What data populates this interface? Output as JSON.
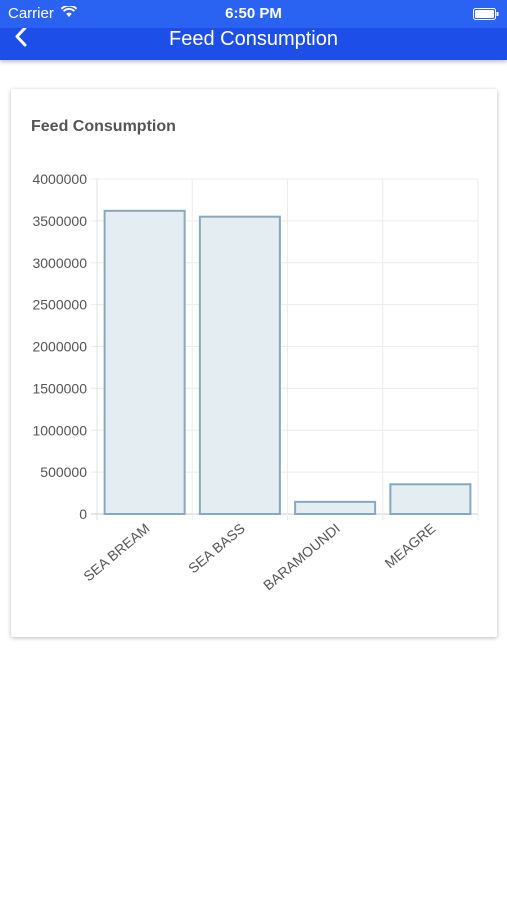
{
  "status_bar": {
    "carrier": "Carrier",
    "time": "6:50 PM"
  },
  "nav": {
    "title": "Feed Consumption",
    "back_icon": "chevron-left-icon"
  },
  "card": {
    "title": "Feed Consumption"
  },
  "colors": {
    "nav_bg": "#1d4fe8",
    "bar_fill": "#e4edf1",
    "bar_stroke": "#86a9c0"
  },
  "chart_data": {
    "type": "bar",
    "categories": [
      "SEA BREAM",
      "SEA BASS",
      "BARAMOUNDI",
      "MEAGRE"
    ],
    "values": [
      3620000,
      3550000,
      145000,
      355000
    ],
    "y_ticks": [
      "0",
      "500000",
      "1000000",
      "1500000",
      "2000000",
      "2500000",
      "3000000",
      "3500000",
      "4000000"
    ],
    "ylim": [
      0,
      4000000
    ],
    "grid": true,
    "title": "",
    "xlabel": "",
    "ylabel": ""
  }
}
